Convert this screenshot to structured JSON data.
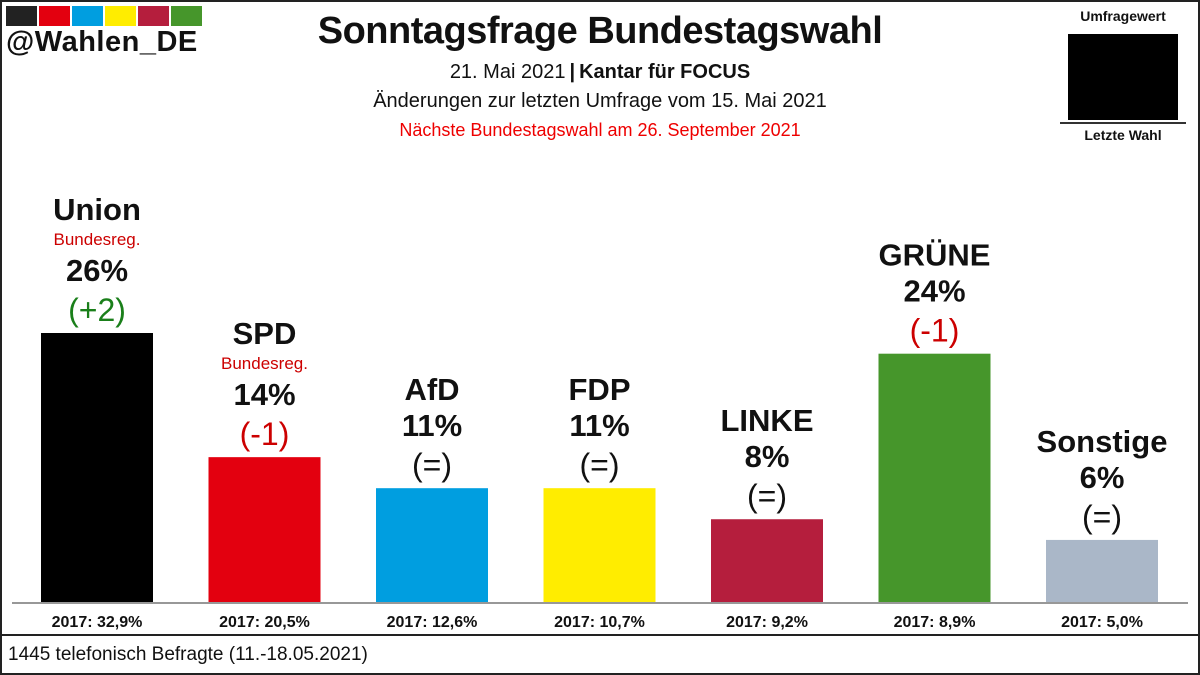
{
  "header": {
    "handle": "@Wahlen_DE",
    "stripe_colors": [
      "#222222",
      "#e3000f",
      "#009ee0",
      "#ffed00",
      "#b51e3d",
      "#46962b"
    ],
    "title": "Sonntagsfrage Bundestagswahl",
    "date": "21. Mai 2021",
    "separator": "|",
    "publisher": "Kantar für FOCUS",
    "changes_note": "Änderungen zur letzten Umfrage vom 15. Mai 2021",
    "next_election": "Nächste Bundestagswahl am 26. September 2021"
  },
  "legend": {
    "top_label": "Umfragewert",
    "bottom_label": "Letzte Wahl"
  },
  "footer": {
    "note": "1445 telefonisch Befragte (11.-18.05.2021)"
  },
  "chart_data": {
    "type": "bar",
    "categories": [
      "Union",
      "SPD",
      "AfD",
      "FDP",
      "LINKE",
      "GRÜNE",
      "Sonstige"
    ],
    "values": [
      26,
      14,
      11,
      11,
      8,
      24,
      6
    ],
    "value_labels": [
      "26%",
      "14%",
      "11%",
      "11%",
      "8%",
      "24%",
      "6%"
    ],
    "change_labels": [
      "(+2)",
      "(-1)",
      "(=)",
      "(=)",
      "(=)",
      "(-1)",
      "(=)"
    ],
    "change_colors": [
      "#1a7f1a",
      "#cc0000",
      "#111111",
      "#111111",
      "#111111",
      "#cc0000",
      "#111111"
    ],
    "government_labels": [
      "Bundesreg.",
      "Bundesreg.",
      "",
      "",
      "",
      "",
      ""
    ],
    "last_election_labels": [
      "2017: 32,9%",
      "2017: 20,5%",
      "2017: 12,6%",
      "2017: 10,7%",
      "2017: 9,2%",
      "2017: 8,9%",
      "2017: 5,0%"
    ],
    "colors": [
      "#000000",
      "#e3000f",
      "#009ee0",
      "#ffed00",
      "#b51e3d",
      "#46962b",
      "#aab7c8"
    ],
    "unit": "%",
    "ylim": [
      0,
      35
    ],
    "grid": false
  }
}
